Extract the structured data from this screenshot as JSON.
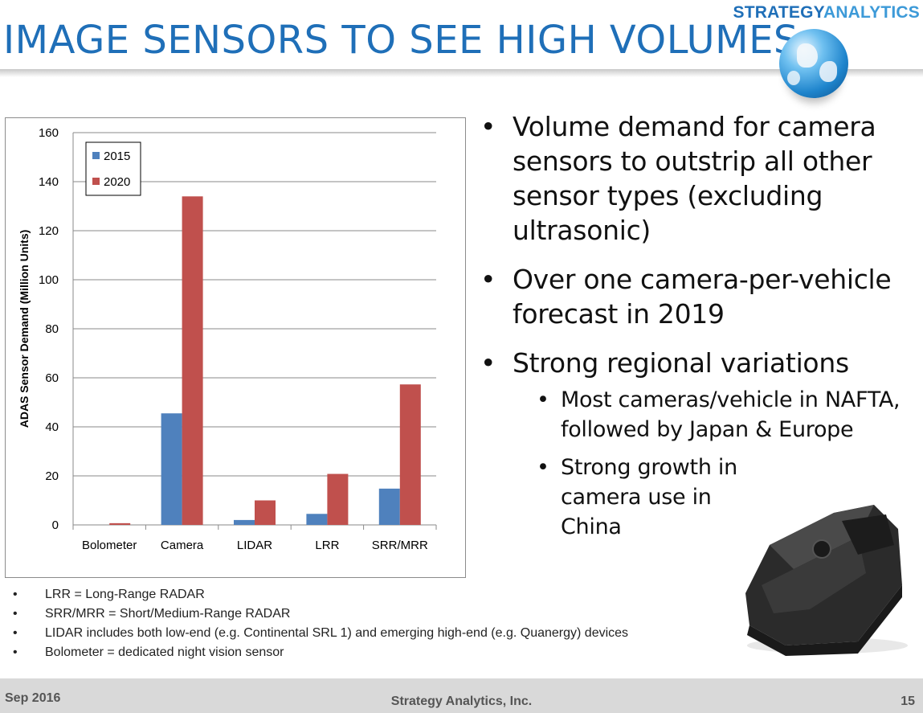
{
  "header": {
    "title": "IMAGE SENSORS TO SEE HIGH VOLUMES",
    "logo_part1": "STRATEGY",
    "logo_part2": "ANALYTICS"
  },
  "chart_data": {
    "type": "bar",
    "categories": [
      "Bolometer",
      "Camera",
      "LIDAR",
      "LRR",
      "SRR/MRR"
    ],
    "series": [
      {
        "name": "2015",
        "values": [
          0,
          45.5,
          2,
          4.5,
          14.8
        ],
        "color": "#4f81bd"
      },
      {
        "name": "2020",
        "values": [
          0.7,
          134,
          10,
          20.8,
          57.3
        ],
        "color": "#c0504d"
      }
    ],
    "ylabel": "ADAS Sensor Demand (Million Units)",
    "xlabel": "",
    "ylim": [
      0,
      160
    ],
    "yticks": [
      0,
      20,
      40,
      60,
      80,
      100,
      120,
      140,
      160
    ],
    "grid": true,
    "legend": "top-left"
  },
  "bullets": {
    "b1": "Volume demand for camera sensors to outstrip all other sensor types (excluding ultrasonic)",
    "b2": "Over one camera-per-vehicle forecast in 2019",
    "b3": "Strong regional variations",
    "sub1": "Most cameras/vehicle in NAFTA, followed by Japan & Europe",
    "sub2": "Strong growth in camera use in China"
  },
  "notes": [
    "LRR = Long-Range RADAR",
    "SRR/MRR = Short/Medium-Range RADAR",
    "LIDAR includes both low-end (e.g. Continental SRL 1) and emerging high-end (e.g. Quanergy) devices",
    "Bolometer = dedicated night vision sensor"
  ],
  "bullet_char": "•",
  "footer": {
    "date": "Sep 2016",
    "company": "Strategy Analytics, Inc.",
    "page": "15"
  }
}
